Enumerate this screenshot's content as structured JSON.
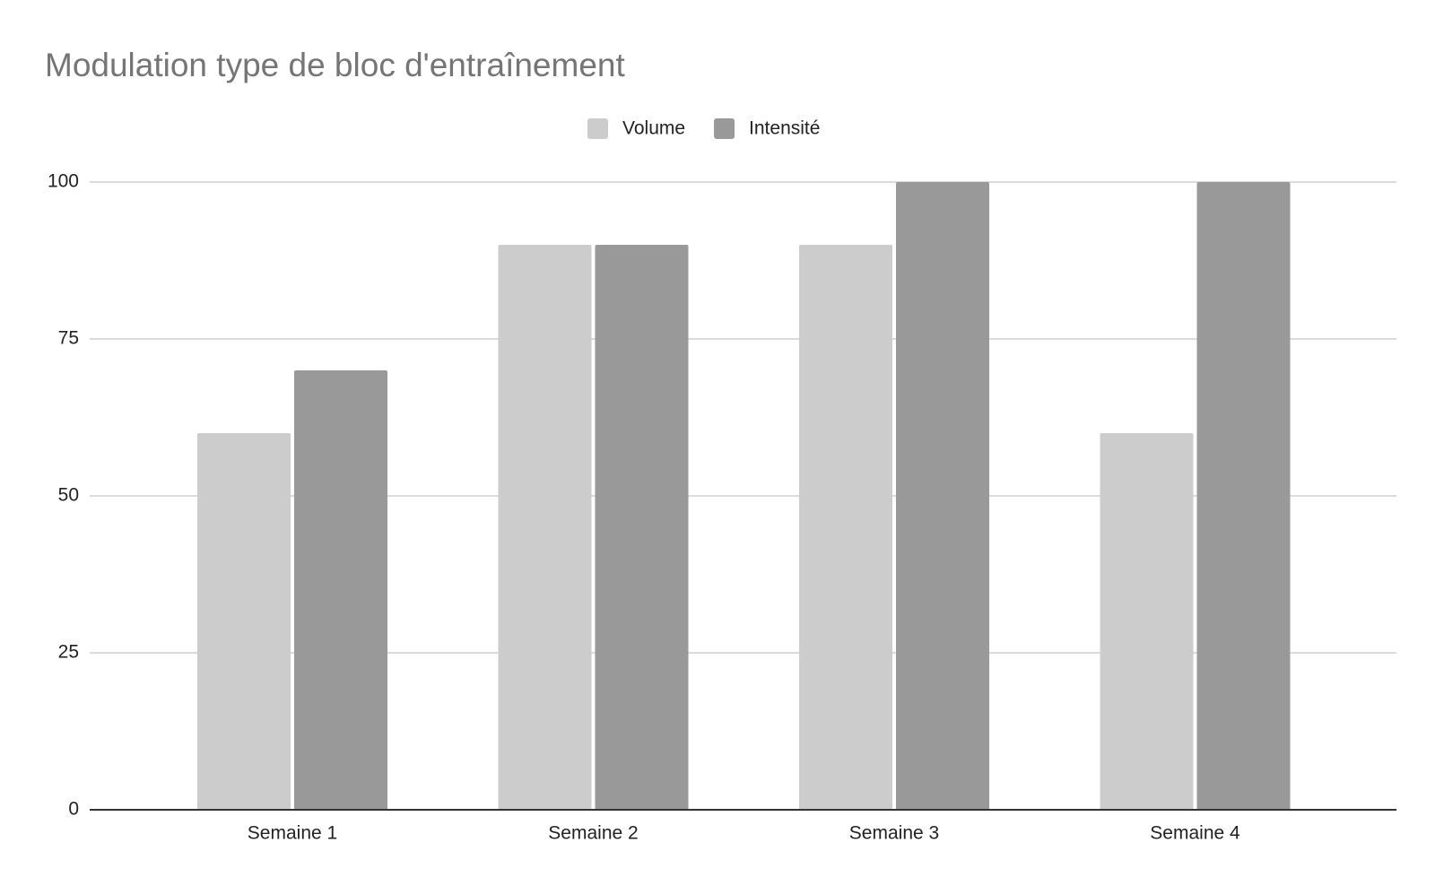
{
  "chart_data": {
    "type": "bar",
    "title": "Modulation type de bloc d'entraînement",
    "categories": [
      "Semaine 1",
      "Semaine 2",
      "Semaine 3",
      "Semaine 4"
    ],
    "series": [
      {
        "name": "Volume",
        "color": "#cccccc",
        "values": [
          60,
          90,
          90,
          60
        ]
      },
      {
        "name": "Intensité",
        "color": "#999999",
        "values": [
          70,
          90,
          100,
          100
        ]
      }
    ],
    "ylim": [
      0,
      100
    ],
    "yticks": [
      0,
      25,
      50,
      75,
      100
    ],
    "grid": true,
    "legend": "top"
  }
}
